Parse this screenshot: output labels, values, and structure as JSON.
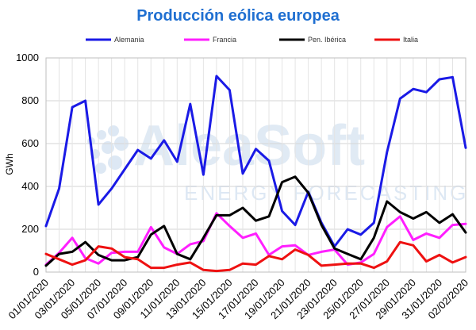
{
  "chart_data": {
    "type": "line",
    "title": "Producción eólica europea",
    "ylabel": "GWh",
    "xlabel": "",
    "ylim": [
      0,
      1000
    ],
    "yticks": [
      0,
      200,
      400,
      600,
      800,
      1000
    ],
    "grid": true,
    "legend_position": "top",
    "x": [
      "01/01/2020",
      "02/01/2020",
      "03/01/2020",
      "04/01/2020",
      "05/01/2020",
      "06/01/2020",
      "07/01/2020",
      "08/01/2020",
      "09/01/2020",
      "10/01/2020",
      "11/01/2020",
      "12/01/2020",
      "13/01/2020",
      "14/01/2020",
      "15/01/2020",
      "16/01/2020",
      "17/01/2020",
      "18/01/2020",
      "19/01/2020",
      "20/01/2020",
      "21/01/2020",
      "22/01/2020",
      "23/01/2020",
      "24/01/2020",
      "25/01/2020",
      "26/01/2020",
      "27/01/2020",
      "28/01/2020",
      "29/01/2020",
      "30/01/2020",
      "31/01/2020",
      "01/02/2020",
      "02/02/2020"
    ],
    "xtick_labels": [
      "01/01/2020",
      "03/01/2020",
      "05/01/2020",
      "07/01/2020",
      "09/01/2020",
      "11/01/2020",
      "13/01/2020",
      "15/01/2020",
      "17/01/2020",
      "19/01/2020",
      "21/01/2020",
      "23/01/2020",
      "25/01/2020",
      "27/01/2020",
      "29/01/2020",
      "31/01/2020",
      "02/02/2020"
    ],
    "series": [
      {
        "name": "Alemania",
        "color": "#1a1ae6",
        "values": [
          215,
          390,
          770,
          800,
          315,
          390,
          480,
          570,
          530,
          615,
          515,
          785,
          455,
          915,
          850,
          460,
          575,
          520,
          285,
          220,
          375,
          230,
          120,
          200,
          175,
          230,
          560,
          810,
          855,
          840,
          900,
          910,
          580
        ]
      },
      {
        "name": "Francia",
        "color": "#ff1fff",
        "values": [
          35,
          90,
          160,
          65,
          40,
          90,
          95,
          95,
          210,
          115,
          85,
          130,
          145,
          275,
          215,
          160,
          180,
          80,
          120,
          125,
          80,
          95,
          105,
          35,
          45,
          85,
          210,
          260,
          150,
          180,
          160,
          220,
          225
        ]
      },
      {
        "name": "Pen. Ibérica",
        "color": "#000000",
        "values": [
          30,
          85,
          95,
          140,
          80,
          55,
          55,
          70,
          175,
          215,
          85,
          60,
          160,
          265,
          265,
          300,
          240,
          260,
          420,
          445,
          370,
          220,
          110,
          85,
          60,
          160,
          330,
          280,
          250,
          280,
          230,
          270,
          185
        ]
      },
      {
        "name": "Italia",
        "color": "#ee1111",
        "values": [
          85,
          60,
          35,
          55,
          120,
          110,
          70,
          60,
          20,
          20,
          35,
          45,
          10,
          5,
          10,
          40,
          35,
          75,
          60,
          105,
          80,
          30,
          35,
          40,
          40,
          20,
          50,
          140,
          125,
          50,
          80,
          45,
          70
        ]
      }
    ]
  },
  "watermark": {
    "main": "AleaSoft",
    "sub": "ENERGY FORECASTING"
  }
}
